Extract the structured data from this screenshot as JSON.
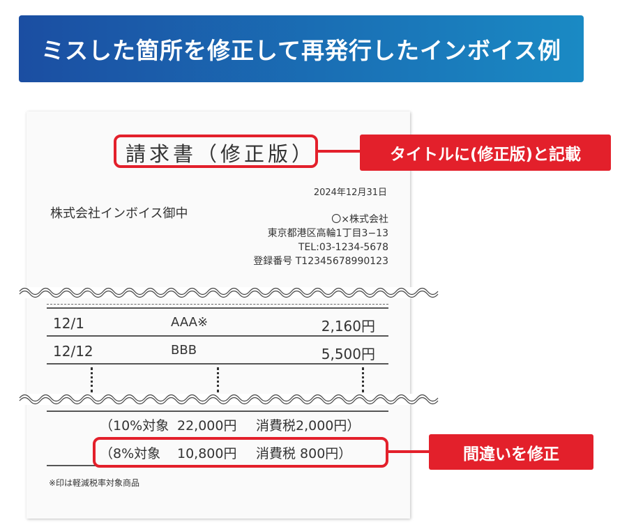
{
  "banner": {
    "title": "ミスした箇所を修正して再発行したインボイス例"
  },
  "invoice": {
    "title": "請求書（修正版）",
    "date": "2024年12月31日",
    "recipient": "株式会社インボイス御中",
    "issuer": [
      "〇×株式会社",
      "東京都港区高輪1丁目3−13",
      "TEL:03-1234-5678",
      "登録番号 T12345678990123"
    ],
    "rows": [
      {
        "date": "12/1",
        "item": "AAA※",
        "amount": "2,160円"
      },
      {
        "date": "12/12",
        "item": "BBB",
        "amount": "5,500円"
      }
    ],
    "tax": [
      {
        "label": "（10%対象",
        "base": "22,000円",
        "tax": "消費税2,000円）"
      },
      {
        "label": "（8%対象",
        "base": "10,800円",
        "tax": "消費税 800円）"
      }
    ],
    "footnote": "※印は軽減税率対象商品"
  },
  "callouts": {
    "title_note": "タイトルに(修正版)と記載",
    "fix_note": "間違いを修正"
  },
  "colors": {
    "accent_red": "#e3202b",
    "banner_start": "#1b4ea2",
    "banner_end": "#1a8ac4"
  }
}
